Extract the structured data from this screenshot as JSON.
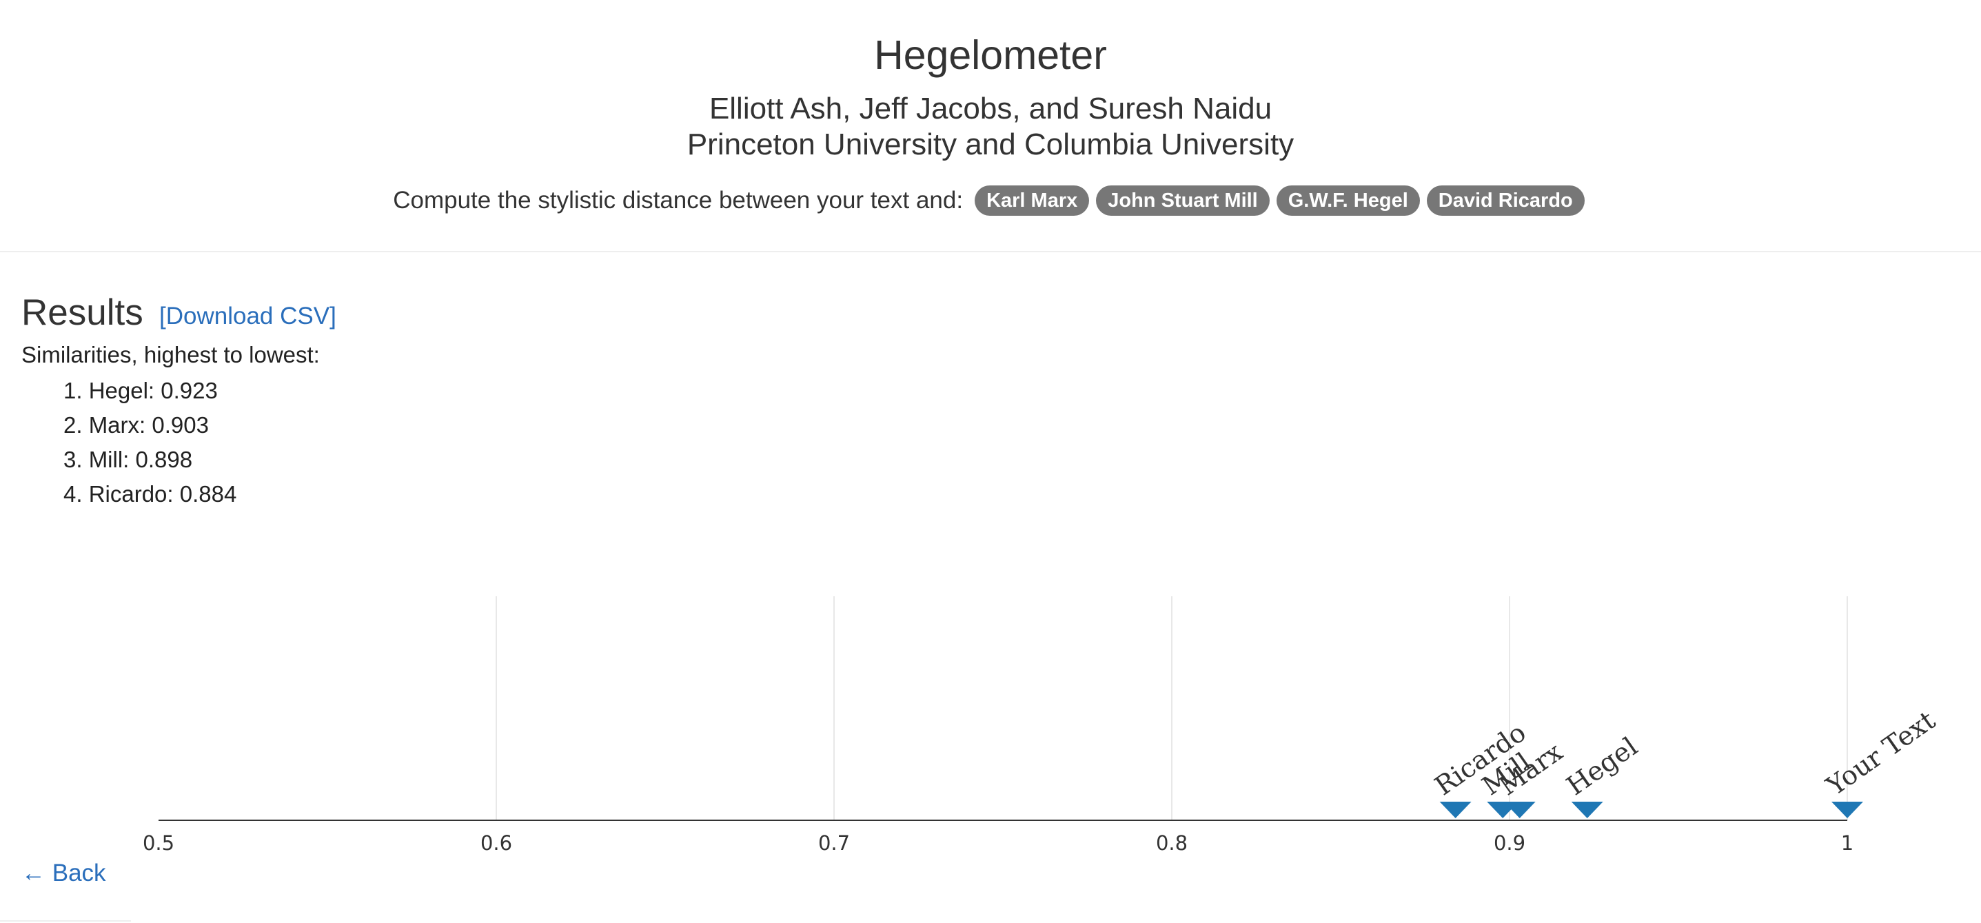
{
  "header": {
    "title": "Hegelometer",
    "authors": "Elliott Ash, Jeff Jacobs, and Suresh Naidu",
    "affiliation": "Princeton University and Columbia University",
    "compute_label": "Compute the stylistic distance between your text and:",
    "badges": [
      "Karl Marx",
      "John Stuart Mill",
      "G.W.F. Hegel",
      "David Ricardo"
    ],
    "badge_color": "#777777"
  },
  "results": {
    "heading": "Results",
    "download_label": "[Download CSV]",
    "similarities_label": "Similarities, highest to lowest:",
    "items": [
      "1. Hegel: 0.923",
      "2. Marx: 0.903",
      "3. Mill: 0.898",
      "4. Ricardo: 0.884"
    ]
  },
  "chart_data": {
    "type": "scatter",
    "title": "",
    "xlabel": "",
    "ylabel": "",
    "xlim": [
      0.5,
      1
    ],
    "x_ticks": [
      "0.5",
      "0.6",
      "0.7",
      "0.8",
      "0.9",
      "1"
    ],
    "grid": true,
    "marker": "triangle-down",
    "marker_color": "#1f77b4",
    "points": [
      {
        "label": "Ricardo",
        "x": 0.884
      },
      {
        "label": "Mill",
        "x": 0.898
      },
      {
        "label": "Marx",
        "x": 0.903
      },
      {
        "label": "Hegel",
        "x": 0.923
      },
      {
        "label": "Your Text",
        "x": 1.0
      }
    ]
  },
  "nav": {
    "back_label": "← Back"
  },
  "link_color": "#2a6ebb"
}
